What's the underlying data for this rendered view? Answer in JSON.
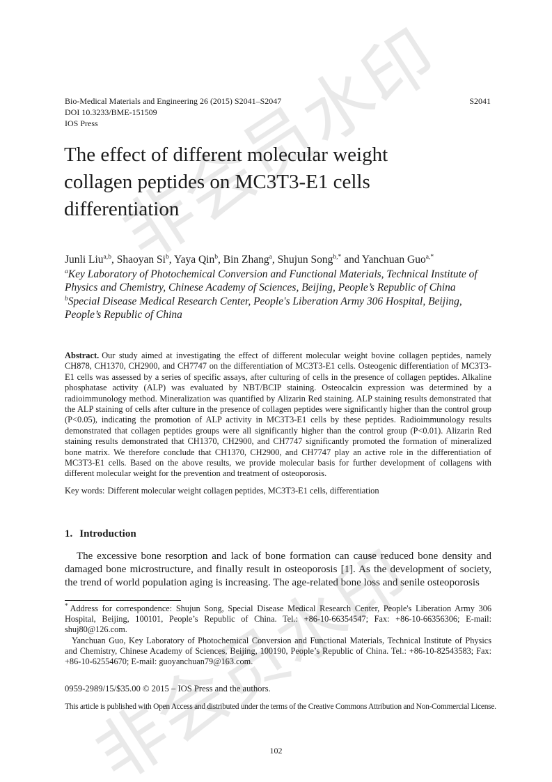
{
  "header": {
    "journal_line": "Bio-Medical Materials and Engineering 26 (2015) S2041–S2047",
    "doi_line": "DOI 10.3233/BME-151509",
    "publisher_line": "IOS Press",
    "page_number_top": "S2041"
  },
  "title": "The effect of different molecular weight collagen peptides on MC3T3-E1 cells differentiation",
  "authors": [
    {
      "name": "Junli Liu",
      "sup": "a,b",
      "sep": ", "
    },
    {
      "name": "Shaoyan Si",
      "sup": "b",
      "sep": ", "
    },
    {
      "name": "Yaya Qin",
      "sup": "b",
      "sep": ", "
    },
    {
      "name": "Bin Zhang",
      "sup": "a",
      "sep": ", "
    },
    {
      "name": "Shujun Song",
      "sup": "b,*",
      "sep": " and "
    },
    {
      "name": "Yanchuan Guo",
      "sup": "a,*",
      "sep": ""
    }
  ],
  "affiliations": [
    {
      "sup": "a",
      "text": "Key Laboratory of Photochemical Conversion and Functional Materials, Technical Institute of Physics and Chemistry, Chinese Academy of Sciences, Beijing, People’s Republic of China"
    },
    {
      "sup": "b",
      "text": "Special Disease Medical Research Center, People's Liberation Army 306 Hospital, Beijing, People’s Republic of China"
    }
  ],
  "abstract": {
    "label": "Abstract.",
    "text": "Our study aimed at investigating the effect of different molecular weight bovine collagen peptides, namely CH878, CH1370, CH2900, and CH7747 on the differentiation of MC3T3-E1 cells. Osteogenic differentiation of MC3T3-E1 cells was assessed by a series of specific assays, after culturing of cells in the presence of collagen peptides. Alkaline phosphatase activity (ALP) was evaluated by NBT/BCIP staining. Osteocalcin expression was determined by a radioimmunology method. Mineralization was quantified by Alizarin Red staining. ALP staining results demonstrated that the ALP staining of cells after culture in the presence of collagen peptides were significantly higher than the control group (P<0.05), indicating the promotion of ALP activity in MC3T3-E1 cells by these peptides. Radioimmunology results demonstrated that collagen peptides groups were all significantly higher than the control group (P<0.01). Alizarin Red staining results demonstrated that CH1370, CH2900, and CH7747 significantly promoted the formation of mineralized bone matrix. We therefore conclude that CH1370, CH2900, and CH7747 play an active role in the differentiation of MC3T3-E1 cells. Based on the above results, we provide molecular basis for further development of collagens with different molecular weight for the prevention and treatment of osteoporosis.",
    "keywords_label": "Key words:",
    "keywords": "Different molecular weight collagen peptides, MC3T3-E1 cells, differentiation"
  },
  "sections": {
    "introduction": {
      "num": "1.",
      "label": "Introduction",
      "paragraph": "The excessive bone resorption and lack of bone formation can cause reduced bone density and damaged bone microstructure, and finally result in osteoporosis [1]. As the development of society, the trend of world population aging is increasing. The age-related bone loss and senile osteoporosis"
    }
  },
  "footnote": {
    "marker": "*",
    "para1": "Address for correspondence: Shujun Song, Special Disease Medical Research Center, People's Liberation Army 306 Hospital, Beijing, 100101, People’s Republic of China. Tel.: +86-10-66354547; Fax: +86-10-66356306; E-mail: shuj80@126.com.",
    "para2": "Yanchuan Guo, Key Laboratory of Photochemical Conversion and Functional Materials, Technical Institute of Physics and Chemistry, Chinese Academy of Sciences, Beijing, 100190, People’s Republic of China. Tel.: +86-10-82543583; Fax: +86-10-62554670; E-mail: guoyanchuan79@163.com."
  },
  "footer": {
    "issn_line": "0959-2989/15/$35.00 © 2015 – IOS Press and the authors.",
    "license_line": "This article is published with Open Access and distributed under the terms of the Creative Commons Attribution and Non-Commercial License.",
    "page_number_bottom": "102"
  },
  "watermark": {
    "text": "非会员水印",
    "color": "#e9e9e9"
  }
}
